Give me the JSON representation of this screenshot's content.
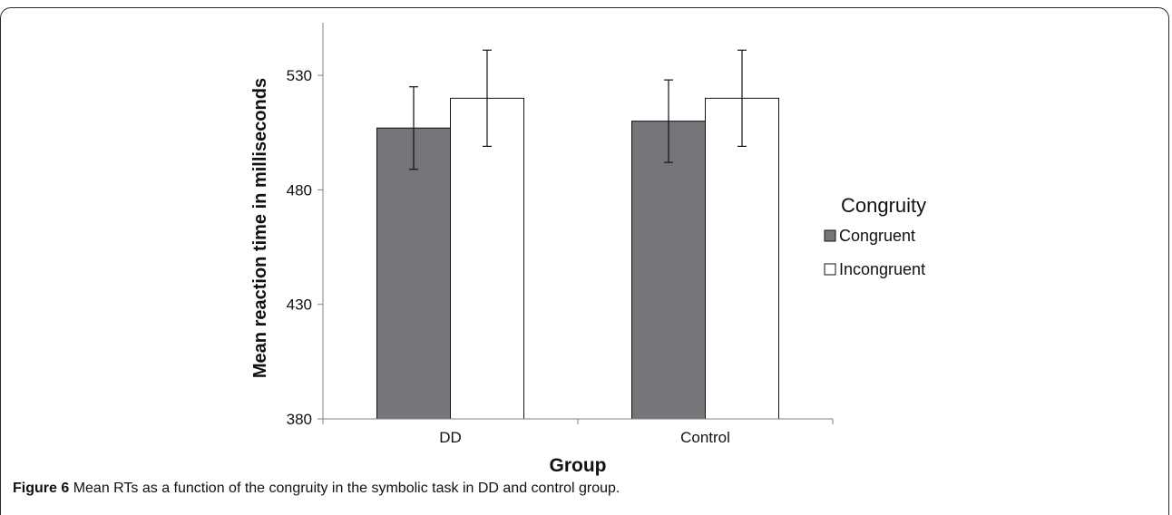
{
  "caption": {
    "label": "Figure 6",
    "text": "Mean RTs as a function of the congruity in the symbolic task in DD and control group."
  },
  "chart_data": {
    "type": "bar",
    "categories": [
      "DD",
      "Control"
    ],
    "series": [
      {
        "name": "Congruent",
        "values": [
          507,
          510
        ],
        "error": [
          18,
          18
        ],
        "color": "#75767a"
      },
      {
        "name": "Incongruent",
        "values": [
          520,
          520
        ],
        "error": [
          21,
          21
        ],
        "color": "#ffffff"
      }
    ],
    "xlabel": "Group",
    "ylabel": "Mean reaction time in milliseconds",
    "ylim": [
      380,
      553
    ],
    "yticks": [
      380,
      430,
      480,
      530
    ],
    "legend": {
      "title": "Congruity",
      "placement": "right"
    },
    "grid": false
  }
}
